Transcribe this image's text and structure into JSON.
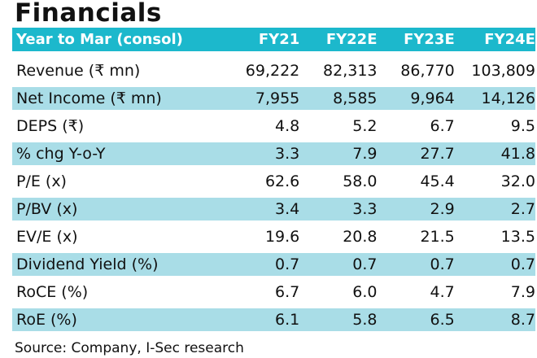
{
  "title": "Financials",
  "header": {
    "label": "Year to Mar (consol)",
    "cols": [
      "FY21",
      "FY22E",
      "FY23E",
      "FY24E"
    ]
  },
  "rows": [
    {
      "label": "Revenue (₹ mn)",
      "values": [
        "69,222",
        "82,313",
        "86,770",
        "103,809"
      ]
    },
    {
      "label": "Net Income (₹ mn)",
      "values": [
        "7,955",
        "8,585",
        "9,964",
        "14,126"
      ]
    },
    {
      "label": "DEPS (₹)",
      "values": [
        "4.8",
        "5.2",
        "6.7",
        "9.5"
      ]
    },
    {
      "label": "% chg Y-o-Y",
      "values": [
        "3.3",
        "7.9",
        "27.7",
        "41.8"
      ]
    },
    {
      "label": "P/E (x)",
      "values": [
        "62.6",
        "58.0",
        "45.4",
        "32.0"
      ]
    },
    {
      "label": "P/BV (x)",
      "values": [
        "3.4",
        "3.3",
        "2.9",
        "2.7"
      ]
    },
    {
      "label": "EV/E (x)",
      "values": [
        "19.6",
        "20.8",
        "21.5",
        "13.5"
      ]
    },
    {
      "label": "Dividend Yield (%)",
      "values": [
        "0.7",
        "0.7",
        "0.7",
        "0.7"
      ]
    },
    {
      "label": "RoCE (%)",
      "values": [
        "6.7",
        "6.0",
        "4.7",
        "7.9"
      ]
    },
    {
      "label": "RoE (%)",
      "values": [
        "6.1",
        "5.8",
        "6.5",
        "8.7"
      ]
    }
  ],
  "source": "Source: Company, I-Sec research",
  "colors": {
    "header": "#1cb8cc",
    "alt_row": "#a9dde7"
  }
}
